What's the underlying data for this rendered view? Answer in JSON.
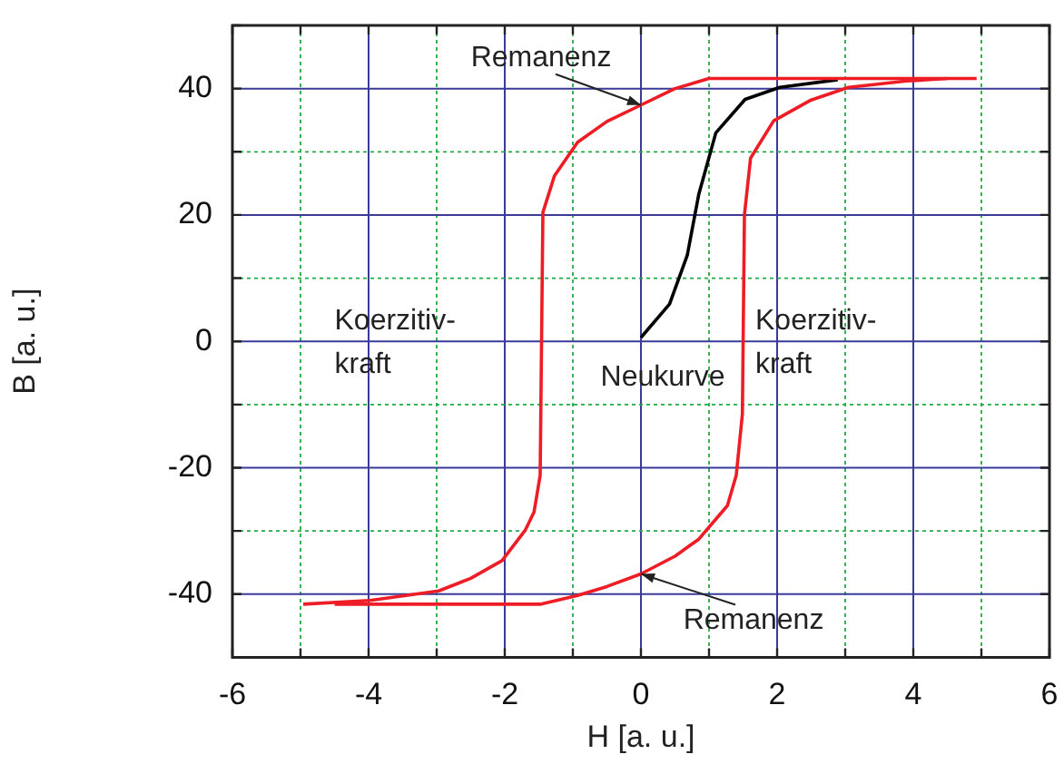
{
  "chart_data": {
    "type": "line",
    "xlabel": "H [a. u.]",
    "ylabel": "B [a. u.]",
    "marker": "none",
    "grid": true,
    "legend": false,
    "xlim": [
      -6,
      6
    ],
    "ylim": [
      -50,
      50
    ],
    "xticks": [
      -6,
      {
        "value": -5,
        "label": null
      },
      -4,
      {
        "value": -3,
        "label": null
      },
      -2,
      {
        "value": -1,
        "label": null
      },
      0,
      {
        "value": 1,
        "label": null
      },
      2,
      {
        "value": 3,
        "label": null
      },
      4,
      {
        "value": 5,
        "label": null
      },
      6
    ],
    "yticks": [
      {
        "value": -50,
        "label": null
      },
      -40,
      {
        "value": -30,
        "label": null
      },
      -20,
      {
        "value": -10,
        "label": null
      },
      0,
      {
        "value": 10,
        "label": null
      },
      20,
      {
        "value": 30,
        "label": null
      },
      40,
      {
        "value": 50,
        "label": null
      }
    ],
    "series": [
      {
        "color": "#ee1c25",
        "x": [
          4.93,
          1.0,
          0.5,
          0,
          -0.5,
          -0.93,
          -1.27,
          -1.44,
          -1.48,
          -1.57,
          -1.7,
          -2.04,
          -2.5,
          -2.97,
          -3.98,
          -4.96
        ],
        "values": [
          41.6,
          41.6,
          40.0,
          37.4,
          34.8,
          31.5,
          26.2,
          20.4,
          -21.2,
          -27,
          -29.9,
          -34.7,
          -37.5,
          -39.5,
          -41,
          -41.6
        ]
      },
      {
        "color": "#ee1c25",
        "x": [
          -4.5,
          -1.48,
          -0.93,
          -0.5,
          0,
          0.5,
          0.85,
          1.27,
          1.4,
          1.49,
          1.52,
          1.61,
          1.95,
          2.5,
          3.05,
          3.9,
          4.5
        ],
        "values": [
          -41.6,
          -41.6,
          -40.2,
          -38.8,
          -36.8,
          -34.0,
          -31.3,
          -26,
          -21.2,
          -11.5,
          20,
          29,
          34.9,
          38.2,
          40.2,
          41.2,
          41.6
        ]
      },
      {
        "name": "Neukurve",
        "color": "#000000",
        "x": [
          0,
          0.42,
          0.68,
          0.85,
          1.1,
          1.53,
          2.04,
          2.89
        ],
        "values": [
          0.6,
          5.9,
          13.6,
          23.3,
          33,
          38.3,
          40.2,
          41.4
        ]
      }
    ],
    "annotations": [
      {
        "text": "Remanenz",
        "x": 0,
        "y": 37.4
      },
      {
        "text": "Remanenz",
        "x": 0,
        "y": -36.8
      },
      "Koerzitiv-\nkraft",
      "Koerzitiv-\nkraft"
    ]
  }
}
